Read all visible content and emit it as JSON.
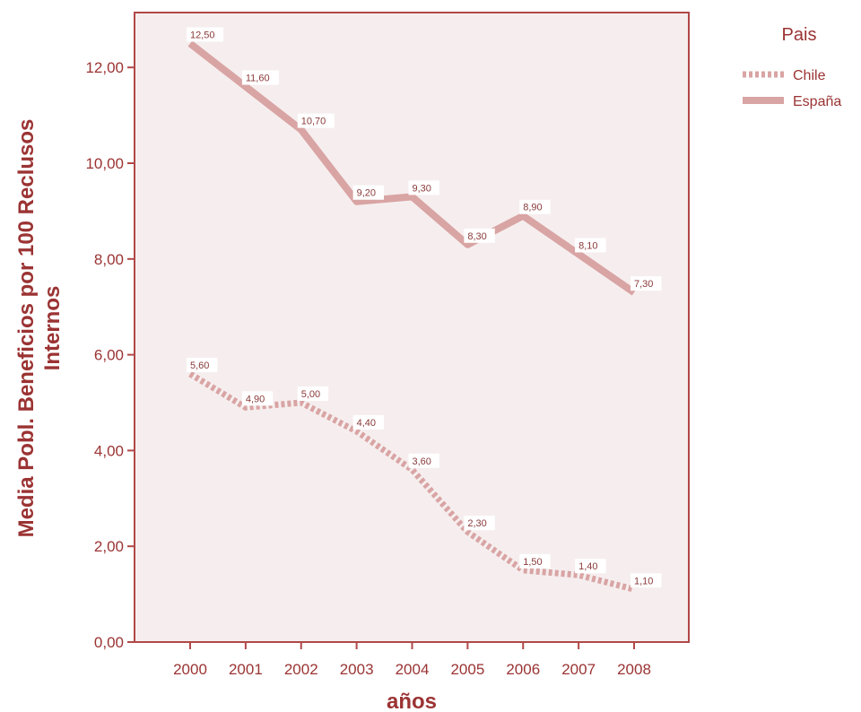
{
  "chart_data": {
    "type": "line",
    "categories": [
      "2000",
      "2001",
      "2002",
      "2003",
      "2004",
      "2005",
      "2006",
      "2007",
      "2008"
    ],
    "series": [
      {
        "name": "Chile",
        "style": "dotted",
        "values": [
          5.6,
          4.9,
          5.0,
          4.4,
          3.6,
          2.3,
          1.5,
          1.4,
          1.1
        ],
        "labels": [
          "5,60",
          "4,90",
          "5,00",
          "4,40",
          "3,60",
          "2,30",
          "1,50",
          "1,40",
          "1,10"
        ]
      },
      {
        "name": "España",
        "style": "solid",
        "values": [
          12.5,
          11.6,
          10.7,
          9.2,
          9.3,
          8.3,
          8.9,
          8.1,
          7.3
        ],
        "labels": [
          "12,50",
          "11,60",
          "10,70",
          "9,20",
          "9,30",
          "8,30",
          "8,90",
          "8,10",
          "7,30"
        ]
      }
    ],
    "xlabel": "años",
    "ylabel_line1": "Media Pobl. Beneficios por 100 Reclusos",
    "ylabel_line2": "Internos",
    "ylim": [
      0,
      12.5
    ],
    "yticks": [
      0,
      2,
      4,
      6,
      8,
      10,
      12
    ],
    "ytick_labels": [
      "0,00",
      "2,00",
      "4,00",
      "6,00",
      "8,00",
      "10,00",
      "12,00"
    ],
    "legend_title": "Pais",
    "legend_position": "top-right",
    "grid": false,
    "colors": {
      "line": "#d9a4a4",
      "axis": "#b04848",
      "text": "#9b3333",
      "plot_bg": "#f6eeee"
    }
  }
}
